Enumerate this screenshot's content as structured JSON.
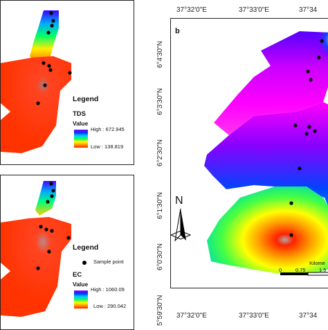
{
  "panel_tds": {
    "legend_title": "Legend",
    "variable": "TDS",
    "value_label": "Value",
    "high": "High : 672.945",
    "low": "Low : 138.819"
  },
  "panel_ec": {
    "legend_title": "Legend",
    "sample_point": "Sample point",
    "variable": "EC",
    "value_label": "Value",
    "high": "High : 1060.09",
    "low": "Low : 290.042"
  },
  "panel_b": {
    "letter": "b",
    "top_coords": [
      "37°32'0\"E",
      "37°33'0\"E",
      "37°34"
    ],
    "bottom_coords": [
      "37°32'0\"E",
      "37°33'0\"E",
      "37°34"
    ],
    "left_coords": [
      "6°4'30\"N",
      "6°3'30\"N",
      "6°2'30\"N",
      "6°1'30\"N",
      "6°0'30\"N",
      "5°59'30\"N"
    ],
    "north_label": "N",
    "scale_label": "Kilome",
    "scale_ticks": [
      "0",
      "0.75",
      "1.5"
    ]
  },
  "colors": {
    "high": "#7a00ff",
    "low": "#ff2200",
    "sample": "#000000"
  }
}
